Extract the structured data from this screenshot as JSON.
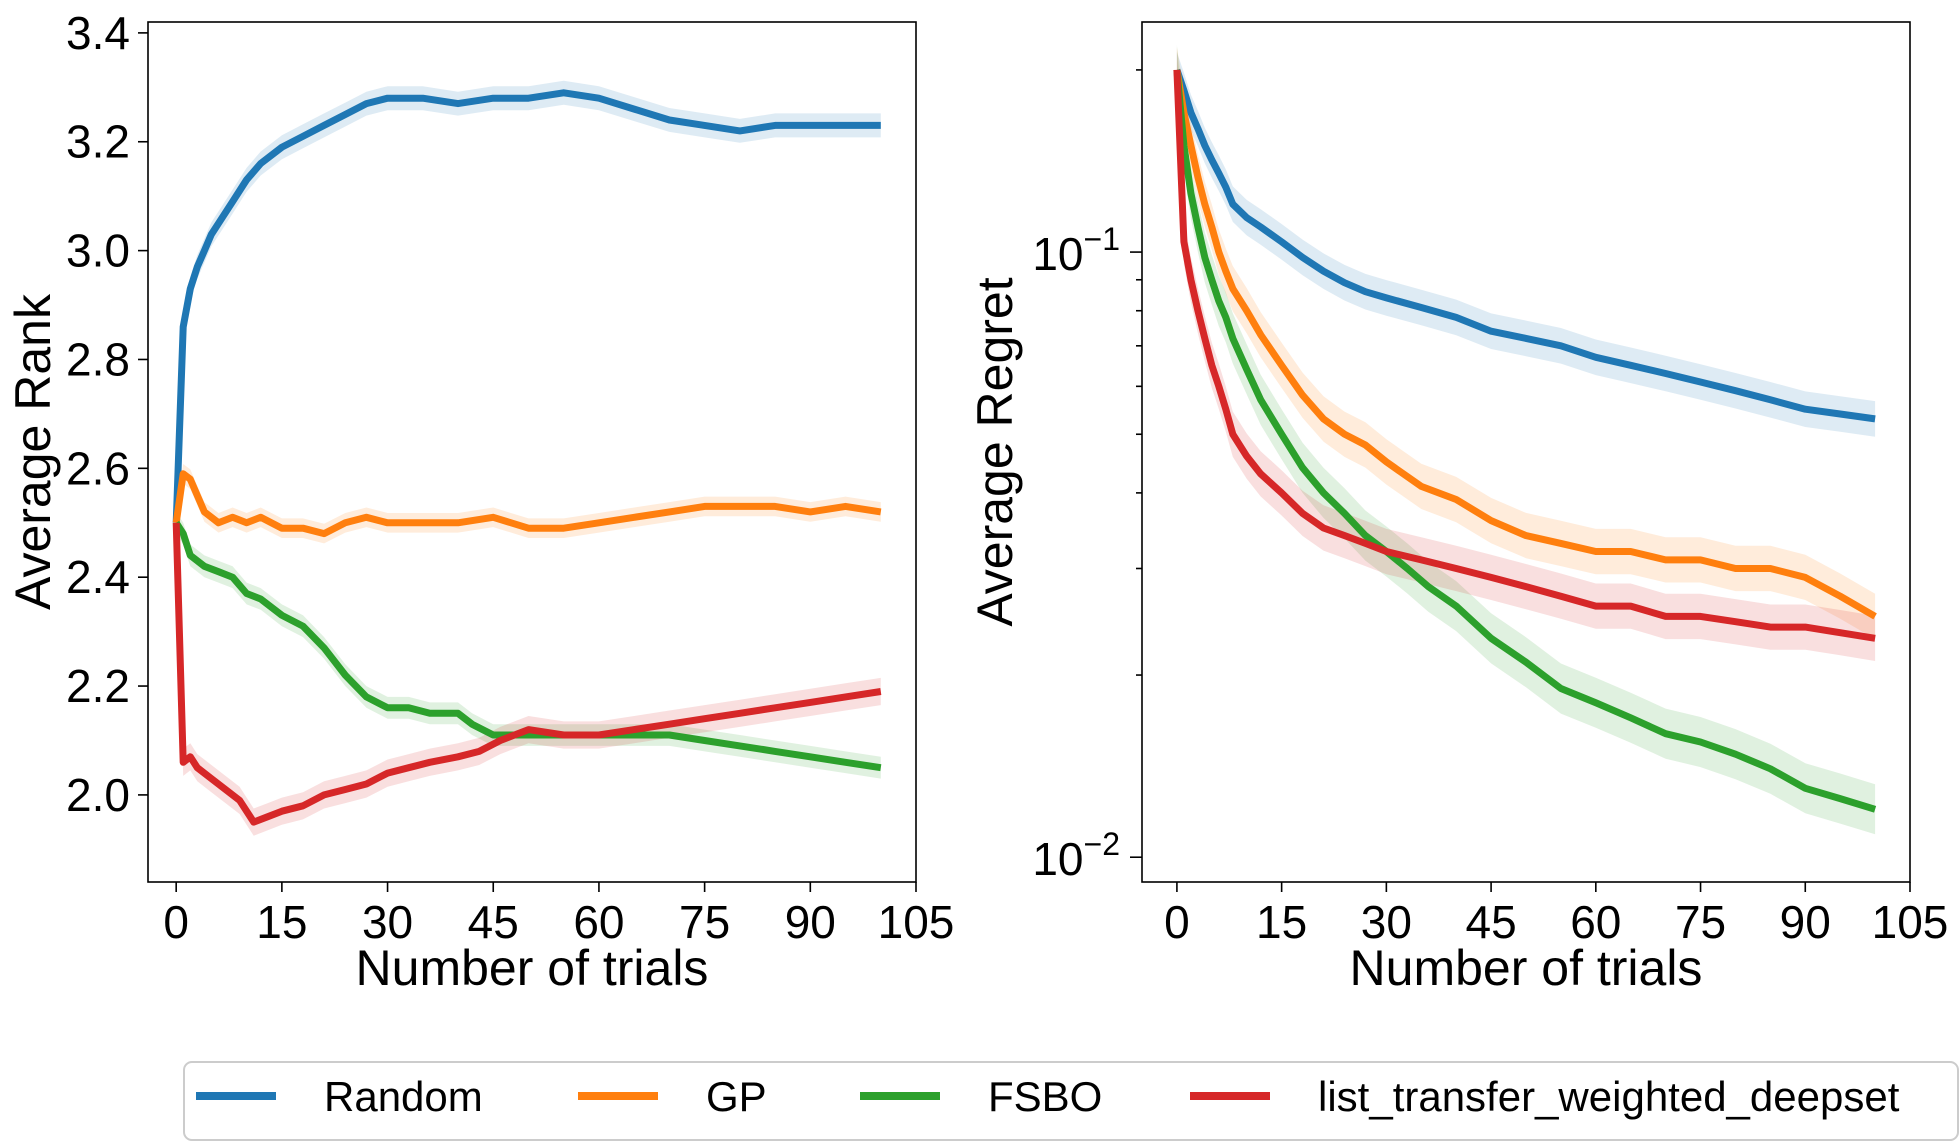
{
  "legend": {
    "entries": [
      {
        "label": "Random",
        "color": "#1f77b4"
      },
      {
        "label": "GP",
        "color": "#ff7f0e"
      },
      {
        "label": "FSBO",
        "color": "#2ca02c"
      },
      {
        "label": "list_transfer_weighted_deepset",
        "color": "#d62728"
      }
    ]
  },
  "chart_data": [
    {
      "type": "line",
      "xlabel": "Number of trials",
      "ylabel": "Average Rank",
      "xlim": [
        -4,
        105
      ],
      "ylim": [
        1.84,
        3.42
      ],
      "xticks": [
        0,
        15,
        30,
        45,
        60,
        75,
        90,
        105
      ],
      "yticks": [
        2.0,
        2.2,
        2.4,
        2.6,
        2.8,
        3.0,
        3.2,
        3.4
      ],
      "yscale": "linear",
      "grid": false,
      "series": [
        {
          "name": "Random",
          "color": "#1f77b4",
          "x": [
            0,
            1,
            2,
            3,
            4,
            5,
            6,
            8,
            10,
            12,
            15,
            18,
            21,
            24,
            27,
            30,
            35,
            40,
            45,
            50,
            55,
            60,
            65,
            70,
            75,
            80,
            85,
            90,
            95,
            100
          ],
          "y": [
            2.5,
            2.86,
            2.93,
            2.97,
            3.0,
            3.03,
            3.05,
            3.09,
            3.13,
            3.16,
            3.19,
            3.21,
            3.23,
            3.25,
            3.27,
            3.28,
            3.28,
            3.27,
            3.28,
            3.28,
            3.29,
            3.28,
            3.26,
            3.24,
            3.23,
            3.22,
            3.23,
            3.23,
            3.23,
            3.23
          ],
          "band": 0.022
        },
        {
          "name": "GP",
          "color": "#ff7f0e",
          "x": [
            0,
            1,
            2,
            3,
            4,
            6,
            8,
            10,
            12,
            15,
            18,
            21,
            24,
            27,
            30,
            35,
            40,
            45,
            50,
            55,
            60,
            65,
            70,
            75,
            80,
            85,
            90,
            95,
            100
          ],
          "y": [
            2.5,
            2.59,
            2.58,
            2.55,
            2.52,
            2.5,
            2.51,
            2.5,
            2.51,
            2.49,
            2.49,
            2.48,
            2.5,
            2.51,
            2.5,
            2.5,
            2.5,
            2.51,
            2.49,
            2.49,
            2.5,
            2.51,
            2.52,
            2.53,
            2.53,
            2.53,
            2.52,
            2.53,
            2.52
          ],
          "band": 0.018
        },
        {
          "name": "FSBO",
          "color": "#2ca02c",
          "x": [
            0,
            1,
            2,
            4,
            6,
            8,
            10,
            12,
            15,
            18,
            21,
            24,
            27,
            30,
            33,
            36,
            40,
            42,
            45,
            48,
            51,
            55,
            60,
            65,
            70,
            75,
            80,
            85,
            90,
            95,
            100
          ],
          "y": [
            2.5,
            2.48,
            2.44,
            2.42,
            2.41,
            2.4,
            2.37,
            2.36,
            2.33,
            2.31,
            2.27,
            2.22,
            2.18,
            2.16,
            2.16,
            2.15,
            2.15,
            2.13,
            2.11,
            2.11,
            2.11,
            2.11,
            2.11,
            2.11,
            2.11,
            2.1,
            2.09,
            2.08,
            2.07,
            2.06,
            2.05
          ],
          "band": 0.02
        },
        {
          "name": "list_transfer_weighted_deepset",
          "color": "#d62728",
          "x": [
            0,
            1,
            2,
            3,
            5,
            7,
            9,
            11,
            13,
            15,
            18,
            21,
            24,
            27,
            30,
            33,
            36,
            40,
            43,
            46,
            50,
            55,
            60,
            65,
            70,
            75,
            80,
            85,
            90,
            95,
            100
          ],
          "y": [
            2.5,
            2.06,
            2.07,
            2.05,
            2.03,
            2.01,
            1.99,
            1.95,
            1.96,
            1.97,
            1.98,
            2.0,
            2.01,
            2.02,
            2.04,
            2.05,
            2.06,
            2.07,
            2.08,
            2.1,
            2.12,
            2.11,
            2.11,
            2.12,
            2.13,
            2.14,
            2.15,
            2.16,
            2.17,
            2.18,
            2.19
          ],
          "band": 0.025
        }
      ]
    },
    {
      "type": "line",
      "xlabel": "Number of trials",
      "ylabel": "Average Regret",
      "xlim": [
        -5,
        105
      ],
      "ylim": [
        0.0091,
        0.24
      ],
      "xticks": [
        0,
        15,
        30,
        45,
        60,
        75,
        90,
        105
      ],
      "yscale": "log",
      "yticks": [
        {
          "value": 0.1,
          "base": "10",
          "exponent": "−1"
        },
        {
          "value": 0.01,
          "base": "10",
          "exponent": "−2"
        }
      ],
      "grid": false,
      "series": [
        {
          "name": "Random",
          "color": "#1f77b4",
          "x": [
            0,
            1,
            2,
            3,
            4,
            5,
            6,
            7,
            8,
            10,
            12,
            15,
            18,
            21,
            24,
            27,
            30,
            35,
            40,
            45,
            50,
            55,
            60,
            65,
            70,
            75,
            80,
            85,
            90,
            95,
            100
          ],
          "y": [
            0.2,
            0.185,
            0.17,
            0.16,
            0.15,
            0.142,
            0.135,
            0.128,
            0.12,
            0.114,
            0.11,
            0.104,
            0.098,
            0.093,
            0.089,
            0.086,
            0.084,
            0.081,
            0.078,
            0.074,
            0.072,
            0.07,
            0.067,
            0.065,
            0.063,
            0.061,
            0.059,
            0.057,
            0.055,
            0.054,
            0.053
          ],
          "band": 0.07
        },
        {
          "name": "GP",
          "color": "#ff7f0e",
          "x": [
            0,
            1,
            2,
            3,
            4,
            5,
            6,
            7,
            8,
            10,
            12,
            15,
            18,
            21,
            24,
            27,
            30,
            35,
            40,
            45,
            50,
            55,
            60,
            65,
            70,
            75,
            80,
            85,
            90,
            95,
            100
          ],
          "y": [
            0.2,
            0.17,
            0.15,
            0.133,
            0.12,
            0.11,
            0.1,
            0.093,
            0.087,
            0.08,
            0.073,
            0.065,
            0.058,
            0.053,
            0.05,
            0.048,
            0.045,
            0.041,
            0.039,
            0.036,
            0.034,
            0.033,
            0.032,
            0.032,
            0.031,
            0.031,
            0.03,
            0.03,
            0.029,
            0.027,
            0.025
          ],
          "band": 0.09
        },
        {
          "name": "FSBO",
          "color": "#2ca02c",
          "x": [
            0,
            1,
            2,
            3,
            4,
            5,
            6,
            7,
            8,
            10,
            12,
            15,
            18,
            21,
            24,
            27,
            30,
            33,
            36,
            40,
            45,
            50,
            55,
            60,
            65,
            70,
            75,
            80,
            85,
            90,
            95,
            100
          ],
          "y": [
            0.2,
            0.15,
            0.125,
            0.11,
            0.098,
            0.09,
            0.083,
            0.078,
            0.072,
            0.064,
            0.057,
            0.05,
            0.044,
            0.04,
            0.037,
            0.034,
            0.032,
            0.03,
            0.028,
            0.026,
            0.023,
            0.021,
            0.019,
            0.018,
            0.017,
            0.016,
            0.0155,
            0.0148,
            0.014,
            0.013,
            0.0125,
            0.012
          ],
          "band": 0.1
        },
        {
          "name": "list_transfer_weighted_deepset",
          "color": "#d62728",
          "x": [
            0,
            1,
            2,
            3,
            4,
            5,
            6,
            7,
            8,
            10,
            12,
            15,
            18,
            21,
            24,
            27,
            30,
            35,
            40,
            45,
            50,
            55,
            60,
            65,
            70,
            75,
            80,
            85,
            90,
            95,
            100
          ],
          "y": [
            0.2,
            0.104,
            0.09,
            0.08,
            0.072,
            0.065,
            0.06,
            0.055,
            0.05,
            0.046,
            0.043,
            0.04,
            0.037,
            0.035,
            0.034,
            0.033,
            0.032,
            0.031,
            0.03,
            0.029,
            0.028,
            0.027,
            0.026,
            0.026,
            0.025,
            0.025,
            0.0245,
            0.024,
            0.024,
            0.0235,
            0.023
          ],
          "band": 0.09
        }
      ]
    }
  ]
}
